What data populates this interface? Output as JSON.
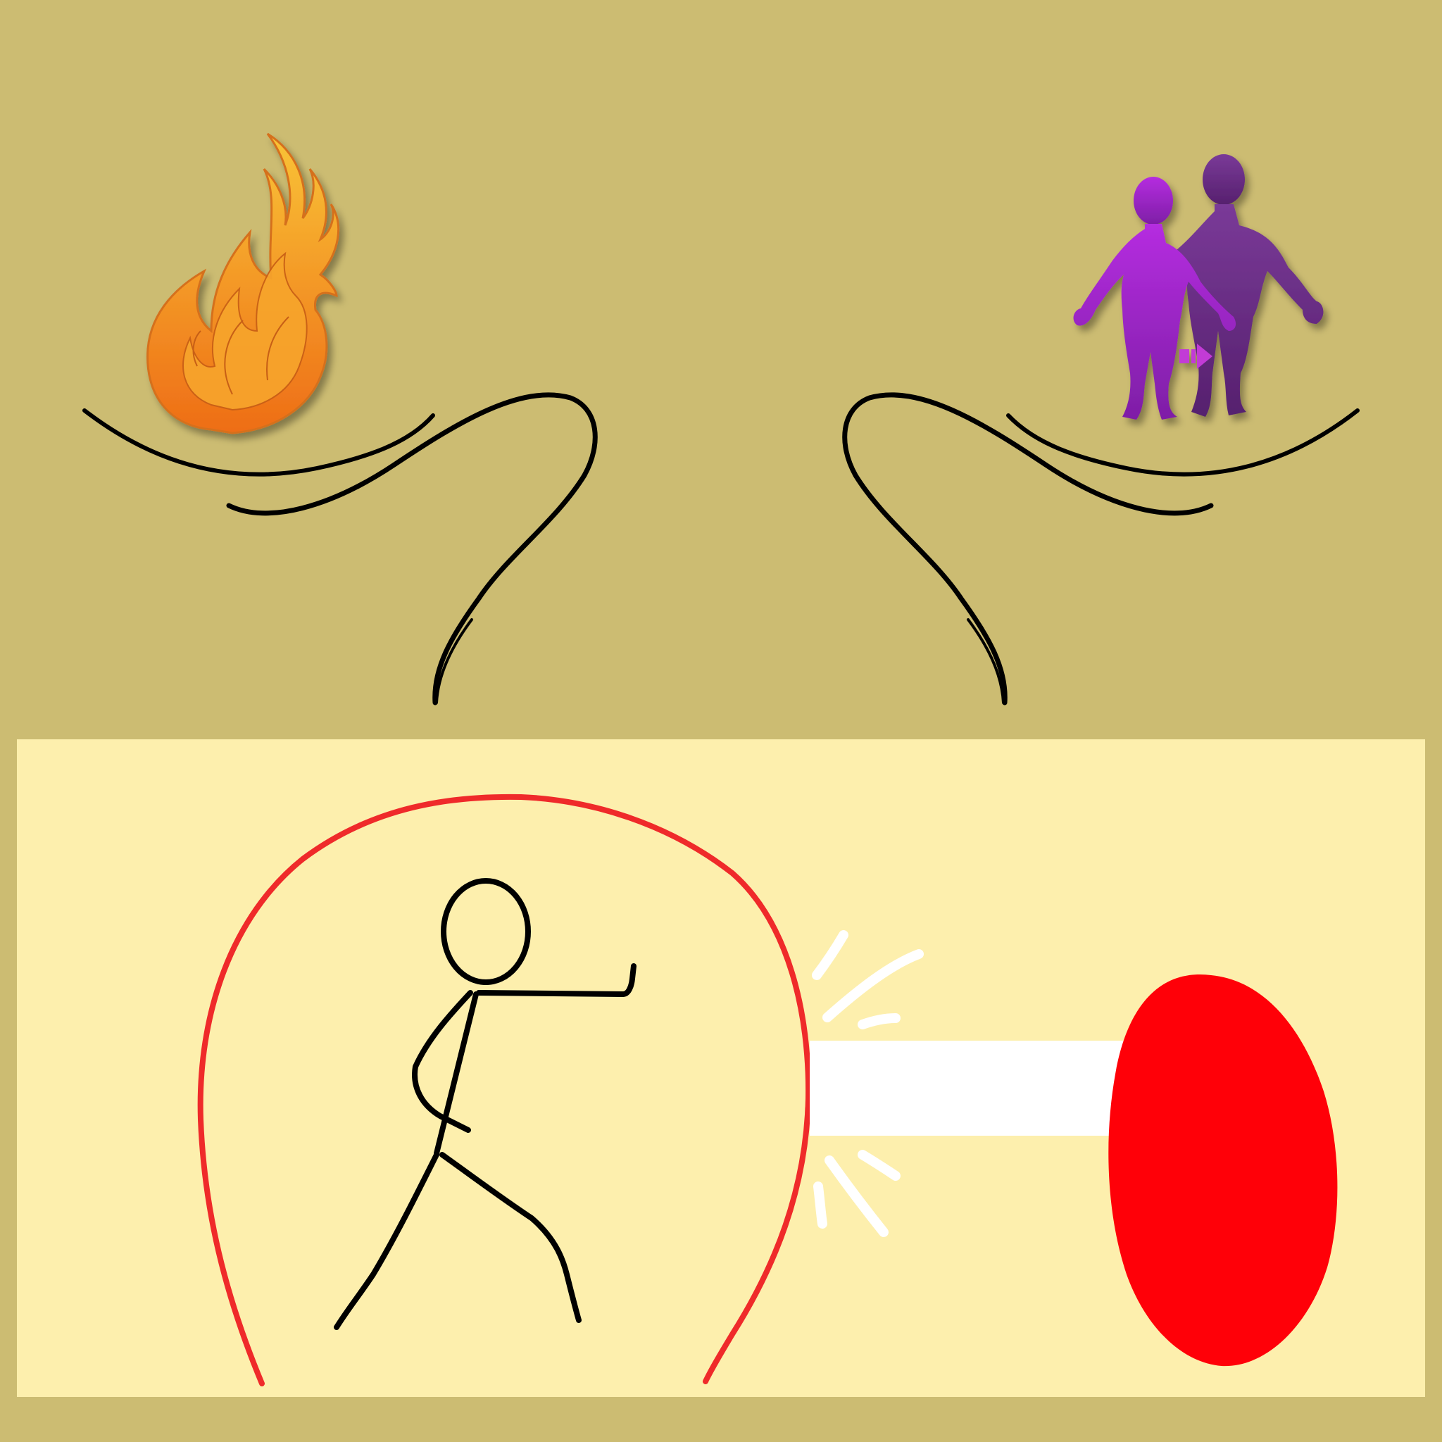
{
  "colors": {
    "background": "#ccbc72",
    "panel": "#fdefad",
    "flame_outer": "#f08a1e",
    "flame_inner": "#f7b733",
    "figure_front": "#9b1fc4",
    "figure_back": "#6a2a86",
    "shield": "#ef2a2a",
    "projectile": "#ff0008",
    "beam": "#ffffff",
    "ink": "#000000"
  },
  "top": {
    "left_icon": "flame-icon",
    "right_icon": "two-figures-icon"
  },
  "bottom": {
    "figure": "stick-figure-pushing",
    "shield": "red-dome-shield",
    "projectile": "red-oval-blob"
  }
}
